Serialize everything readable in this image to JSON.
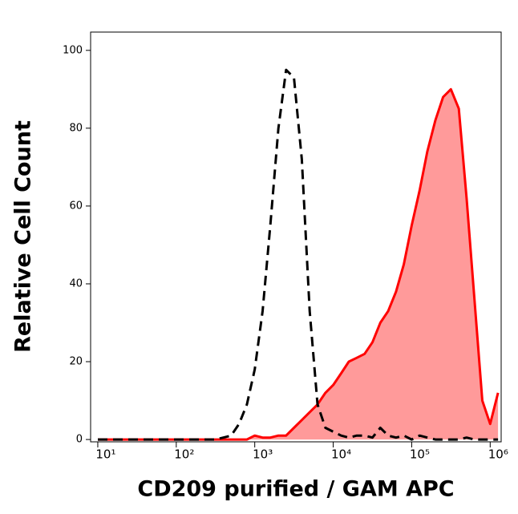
{
  "chart_data": {
    "type": "histogram_overlay",
    "xlabel": "CD209 purified / GAM APC",
    "ylabel": "Relative Cell Count",
    "xscale": "log",
    "x": [
      10,
      12.6,
      15.8,
      20,
      25.1,
      31.6,
      39.8,
      50.1,
      63.1,
      79.4,
      100,
      126,
      158,
      200,
      251,
      316,
      398,
      501,
      631,
      794,
      1000,
      1260,
      1580,
      2000,
      2510,
      3160,
      3980,
      5010,
      6310,
      7940,
      10000,
      12600,
      15800,
      20000,
      25100,
      31600,
      39800,
      50100,
      63100,
      79400,
      100000,
      126000,
      158000,
      200000,
      251000,
      316000,
      398000,
      501000,
      631000,
      794000,
      1000000,
      1260000
    ],
    "series": [
      {
        "color": "#ff0000",
        "fill": "#ff9a9a",
        "line_style": "solid",
        "values": [
          0,
          0,
          0,
          0,
          0,
          0,
          0,
          0,
          0,
          0,
          0,
          0,
          0,
          0,
          0,
          0,
          0,
          0,
          0,
          0,
          1,
          0.5,
          0.5,
          1,
          1,
          3,
          5,
          7,
          9,
          12,
          14,
          17,
          20,
          21,
          22,
          25,
          30,
          33,
          38,
          45,
          55,
          64,
          74,
          82,
          88,
          90,
          85,
          62,
          36,
          10,
          4,
          12
        ]
      },
      {
        "color": "#000000",
        "line_style": "dashed",
        "values": [
          0,
          0,
          0,
          0,
          0,
          0,
          0,
          0,
          0,
          0,
          0,
          0,
          0,
          0,
          0,
          0,
          0.5,
          1,
          4,
          9,
          18,
          33,
          55,
          80,
          95,
          93,
          72,
          33,
          9,
          3,
          2,
          1,
          0.5,
          1,
          1,
          0.5,
          3,
          1,
          0.5,
          1,
          0,
          1,
          0.5,
          0,
          0,
          0,
          0,
          0.5,
          0,
          0,
          0,
          0
        ]
      }
    ],
    "xlim": [
      8.1,
      1380000
    ],
    "ylim": [
      -0.6,
      104.7
    ],
    "xticks": [
      {
        "value": 10,
        "label": "10¹"
      },
      {
        "value": 100,
        "label": "10²"
      },
      {
        "value": 1000,
        "label": "10³"
      },
      {
        "value": 10000,
        "label": "10⁴"
      },
      {
        "value": 100000,
        "label": "10⁵"
      },
      {
        "value": 1000000,
        "label": "10⁶"
      }
    ],
    "yticks": [
      0,
      20,
      40,
      60,
      80,
      100
    ]
  }
}
